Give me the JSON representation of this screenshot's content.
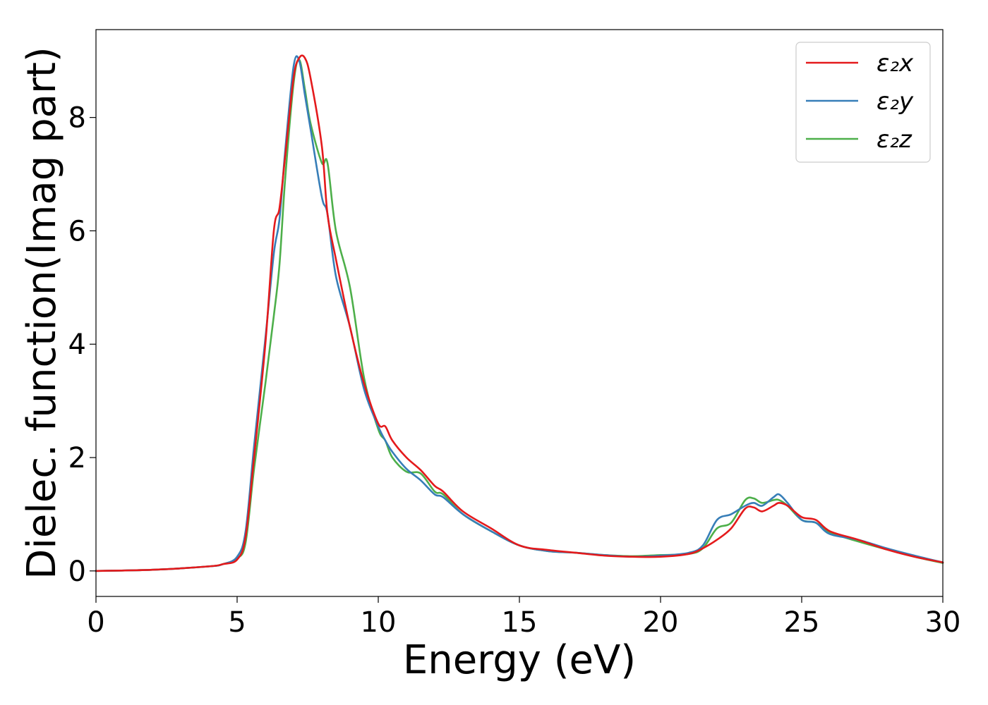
{
  "chart_data": {
    "type": "line",
    "title": "",
    "xlabel": "Energy (eV)",
    "ylabel": "Dielec. function(Imag part)",
    "xlim": [
      0,
      30
    ],
    "ylim": [
      -0.45,
      9.55
    ],
    "xticks": [
      "0",
      "5",
      "10",
      "15",
      "20",
      "25",
      "30"
    ],
    "yticks": [
      "0",
      "2",
      "4",
      "6",
      "8"
    ],
    "grid": false,
    "legend_position": "top-right",
    "x": [
      0,
      2,
      4,
      4.5,
      5,
      5.3,
      5.6,
      6,
      6.3,
      6.5,
      6.7,
      7,
      7.2,
      7.4,
      7.6,
      8,
      8.2,
      8.5,
      9,
      9.5,
      10,
      10.25,
      10.5,
      11,
      11.5,
      12,
      12.3,
      13,
      14,
      15,
      16,
      17,
      18,
      19,
      20,
      21,
      21.5,
      22,
      22.5,
      23,
      23.3,
      23.6,
      24,
      24.2,
      24.5,
      25,
      25.5,
      26,
      27,
      28,
      29,
      30
    ],
    "series": [
      {
        "name": "ε₂x",
        "color": "#e41a1c",
        "values": [
          0.0,
          0.02,
          0.08,
          0.12,
          0.2,
          0.6,
          2.0,
          4.0,
          6.0,
          6.4,
          7.3,
          8.7,
          9.05,
          9.05,
          8.7,
          7.5,
          6.3,
          5.5,
          4.3,
          3.3,
          2.6,
          2.55,
          2.3,
          2.0,
          1.78,
          1.5,
          1.4,
          1.05,
          0.75,
          0.45,
          0.37,
          0.32,
          0.27,
          0.25,
          0.25,
          0.3,
          0.4,
          0.55,
          0.75,
          1.1,
          1.12,
          1.05,
          1.15,
          1.2,
          1.15,
          0.95,
          0.9,
          0.7,
          0.55,
          0.38,
          0.25,
          0.15
        ]
      },
      {
        "name": "ε₂y",
        "color": "#377eb8",
        "values": [
          0.0,
          0.02,
          0.08,
          0.12,
          0.25,
          0.7,
          2.2,
          4.1,
          5.6,
          6.2,
          7.4,
          8.9,
          9.0,
          8.4,
          7.8,
          6.6,
          6.3,
          5.2,
          4.3,
          3.2,
          2.55,
          2.3,
          2.1,
          1.8,
          1.6,
          1.35,
          1.3,
          1.0,
          0.7,
          0.45,
          0.35,
          0.32,
          0.28,
          0.25,
          0.27,
          0.32,
          0.45,
          0.9,
          1.0,
          1.15,
          1.2,
          1.15,
          1.3,
          1.35,
          1.2,
          0.9,
          0.85,
          0.65,
          0.55,
          0.4,
          0.27,
          0.15
        ]
      },
      {
        "name": "ε₂z",
        "color": "#4daf4a",
        "values": [
          0.0,
          0.02,
          0.08,
          0.12,
          0.22,
          0.5,
          1.8,
          3.3,
          4.5,
          5.4,
          6.9,
          8.6,
          9.02,
          8.5,
          7.9,
          7.2,
          7.2,
          6.0,
          5.0,
          3.4,
          2.5,
          2.3,
          2.0,
          1.75,
          1.72,
          1.4,
          1.35,
          1.0,
          0.7,
          0.45,
          0.35,
          0.32,
          0.28,
          0.26,
          0.28,
          0.3,
          0.4,
          0.75,
          0.85,
          1.25,
          1.28,
          1.2,
          1.25,
          1.25,
          1.15,
          0.9,
          0.85,
          0.68,
          0.52,
          0.38,
          0.25,
          0.14
        ]
      }
    ]
  }
}
